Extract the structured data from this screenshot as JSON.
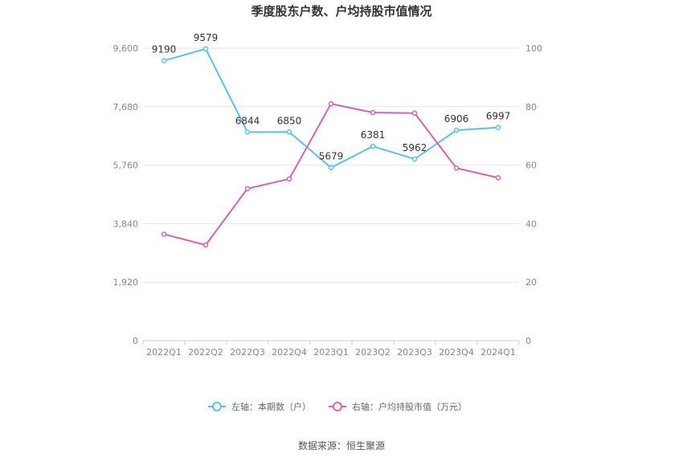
{
  "chart_data": {
    "type": "line",
    "title": "季度股东户数、户均持股市值情况",
    "categories": [
      "2022Q1",
      "2022Q2",
      "2022Q3",
      "2022Q4",
      "2023Q1",
      "2023Q2",
      "2023Q3",
      "2023Q4",
      "2024Q1"
    ],
    "series": [
      {
        "name": "左轴：本期数（户）",
        "axis": "left",
        "color": "#5bc0f0",
        "values": [
          9190,
          9579,
          6844,
          6850,
          5679,
          6381,
          5962,
          6906,
          6997
        ],
        "data_labels": [
          "9190",
          "9579",
          "6844",
          "6850",
          "5679",
          "6381",
          "5962",
          "6906",
          "6997"
        ]
      },
      {
        "name": "右轴：户均持股市值（万元）",
        "axis": "right",
        "color": "#d066b0",
        "values": [
          36.4,
          32.7,
          52.0,
          55.3,
          81.0,
          78.0,
          77.8,
          59.0,
          55.7
        ]
      }
    ],
    "left_axis": {
      "min": 0,
      "max": 9600,
      "ticks": [
        0,
        1920,
        3840,
        5760,
        7680,
        9600
      ],
      "tick_labels": [
        "0",
        "1,920",
        "3,840",
        "5,760",
        "7,680",
        "9,600"
      ]
    },
    "right_axis": {
      "min": 0,
      "max": 100,
      "ticks": [
        0,
        20,
        40,
        60,
        80,
        100
      ],
      "tick_labels": [
        "0",
        "20",
        "40",
        "60",
        "80",
        "100"
      ]
    },
    "grid": true,
    "legend_position": "bottom"
  },
  "source": "数据来源：恒生聚源"
}
